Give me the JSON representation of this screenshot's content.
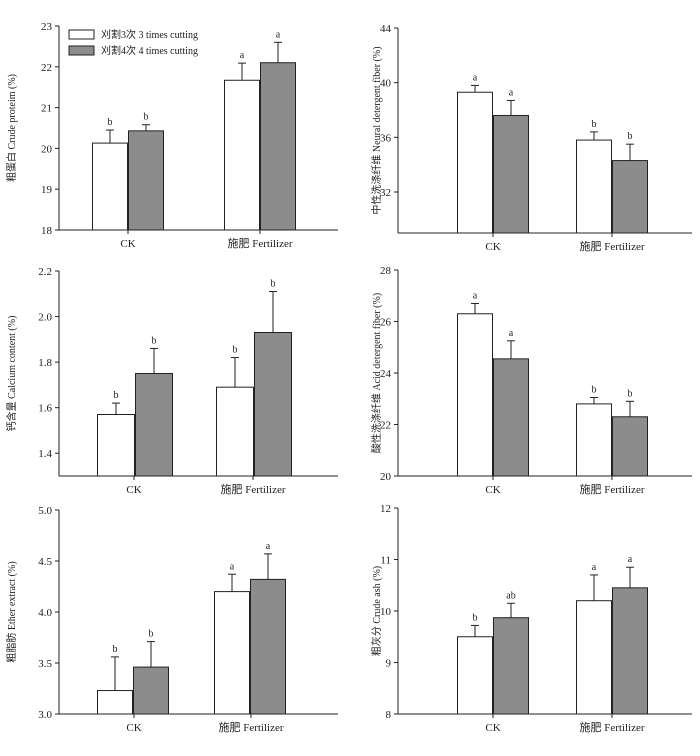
{
  "legend": {
    "items": [
      {
        "label": "刈割3次 3 times cutting",
        "color": "#ffffff"
      },
      {
        "label": "刈割4次 4 times cutting",
        "color": "#8c8c8c"
      }
    ]
  },
  "colors": {
    "series_1": "#ffffff",
    "series_2": "#8c8c8c"
  },
  "chart_data": [
    {
      "type": "bar",
      "ylabel": "粗蛋白 Crude proteim (%)",
      "categories": [
        "CK",
        "施肥 Fertilizer"
      ],
      "ylim": [
        18,
        23
      ],
      "yticks": [
        "18",
        "19",
        "20",
        "21",
        "22",
        "23"
      ],
      "series": [
        {
          "name": "刈割3次 3 times cutting",
          "values": [
            20.13,
            21.67
          ],
          "errors": [
            0.32,
            0.42
          ],
          "letters": [
            "b",
            "a"
          ]
        },
        {
          "name": "刈割4次 4 times cutting",
          "values": [
            20.43,
            22.1
          ],
          "errors": [
            0.15,
            0.5
          ],
          "letters": [
            "b",
            "a"
          ]
        }
      ]
    },
    {
      "type": "bar",
      "ylabel": "中性洗涤纤维 Neural detergent fiber (%)",
      "categories": [
        "CK",
        "施肥 Fertilizer"
      ],
      "ylim": [
        29,
        44
      ],
      "yticks": [
        "32",
        "36",
        "40",
        "44"
      ],
      "series": [
        {
          "name": "刈割3次 3 times cutting",
          "values": [
            39.3,
            35.8
          ],
          "errors": [
            0.5,
            0.6
          ],
          "letters": [
            "a",
            "b"
          ]
        },
        {
          "name": "刈割4次 4 times cutting",
          "values": [
            37.6,
            34.3
          ],
          "errors": [
            1.1,
            1.2
          ],
          "letters": [
            "a",
            "b"
          ]
        }
      ]
    },
    {
      "type": "bar",
      "ylabel": "钙含量 Calcium content (%)",
      "categories": [
        "CK",
        "施肥 Fertilizer"
      ],
      "ylim": [
        1.3,
        2.2
      ],
      "yticks": [
        "1.4",
        "1.6",
        "1.8",
        "2.0",
        "2.2"
      ],
      "series": [
        {
          "name": "刈割3次 3 times cutting",
          "values": [
            1.57,
            1.69
          ],
          "errors": [
            0.05,
            0.13
          ],
          "letters": [
            "b",
            "b"
          ]
        },
        {
          "name": "刈割4次 4 times cutting",
          "values": [
            1.75,
            1.93
          ],
          "errors": [
            0.11,
            0.18
          ],
          "letters": [
            "b",
            "b"
          ]
        }
      ]
    },
    {
      "type": "bar",
      "ylabel": "酸性洗涤纤维 Acid detergent fiber (%)",
      "categories": [
        "CK",
        "施肥 Fertilizer"
      ],
      "ylim": [
        20,
        28
      ],
      "yticks": [
        "20",
        "22",
        "24",
        "26",
        "28"
      ],
      "series": [
        {
          "name": "刈割3次 3 times cutting",
          "values": [
            26.3,
            22.8
          ],
          "errors": [
            0.4,
            0.25
          ],
          "letters": [
            "a",
            "b"
          ]
        },
        {
          "name": "刈割4次 4 times cutting",
          "values": [
            24.55,
            22.3
          ],
          "errors": [
            0.7,
            0.6
          ],
          "letters": [
            "a",
            "b"
          ]
        }
      ]
    },
    {
      "type": "bar",
      "ylabel": "粗脂肪 Ether extract (%)",
      "categories": [
        "CK",
        "施肥 Fertilizer"
      ],
      "ylim": [
        3.0,
        5.0
      ],
      "yticks": [
        "3.0",
        "3.5",
        "4.0",
        "4.5",
        "5.0"
      ],
      "series": [
        {
          "name": "刈割3次 3 times cutting",
          "values": [
            3.23,
            4.2
          ],
          "errors": [
            0.33,
            0.17
          ],
          "letters": [
            "b",
            "a"
          ]
        },
        {
          "name": "刈割4次 4 times cutting",
          "values": [
            3.46,
            4.32
          ],
          "errors": [
            0.25,
            0.25
          ],
          "letters": [
            "b",
            "a"
          ]
        }
      ]
    },
    {
      "type": "bar",
      "ylabel": "粗灰分 Crude ash (%)",
      "categories": [
        "CK",
        "施肥 Fertilizer"
      ],
      "ylim": [
        8,
        12
      ],
      "yticks": [
        "8",
        "9",
        "10",
        "11",
        "12"
      ],
      "series": [
        {
          "name": "刈割3次 3 times cutting",
          "values": [
            9.5,
            10.2
          ],
          "errors": [
            0.22,
            0.5
          ],
          "letters": [
            "b",
            "a"
          ]
        },
        {
          "name": "刈割4次 4 times cutting",
          "values": [
            9.87,
            10.45
          ],
          "errors": [
            0.28,
            0.4
          ],
          "letters": [
            "ab",
            "a"
          ]
        }
      ]
    }
  ]
}
